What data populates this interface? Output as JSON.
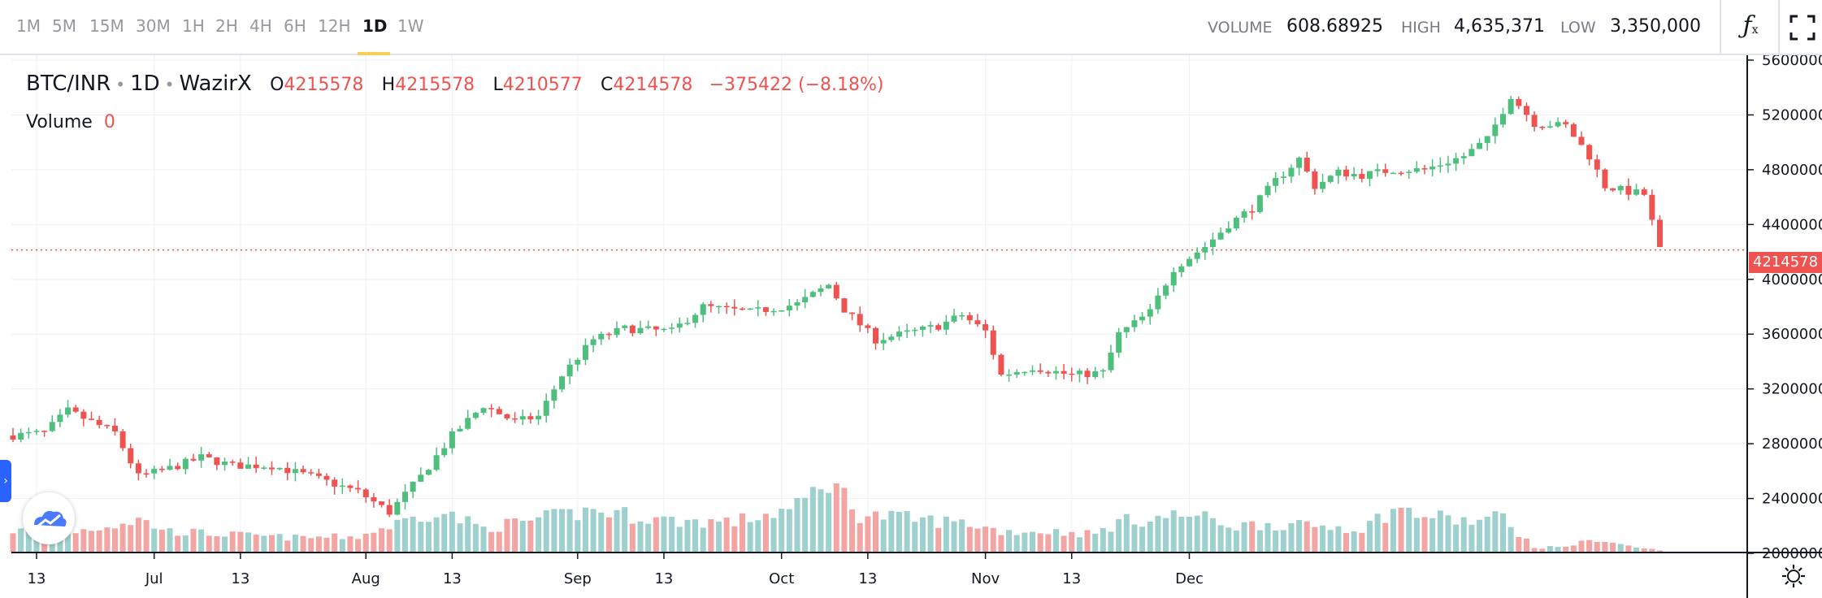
{
  "toolbar": {
    "intervals": [
      "1M",
      "5M",
      "15M",
      "30M",
      "1H",
      "2H",
      "4H",
      "6H",
      "12H",
      "1D",
      "1W"
    ],
    "active_interval": "1D",
    "volume_label": "VOLUME",
    "volume_value": "608.68925",
    "high_label": "HIGH",
    "high_value": "4,635,371",
    "low_label": "LOW",
    "low_value": "3,350,000",
    "fx_icon": "fx-indicators-icon",
    "fullscreen_icon": "fullscreen-icon"
  },
  "legend": {
    "symbol": "BTC/INR",
    "interval": "1D",
    "exchange": "WazirX",
    "open_label": "O",
    "open_value": "4215578",
    "high_label": "H",
    "high_value": "4215578",
    "low_label": "L",
    "low_value": "4210577",
    "close_label": "C",
    "close_value": "4214578",
    "change": "−375422 (−8.18%)",
    "volume_label": "Volume",
    "volume_value": "0"
  },
  "colors": {
    "up": "#26a69a",
    "up_candle": "#4fbf7e",
    "down": "#ef5350",
    "up_volume": "#9ed1cd",
    "down_volume": "#f3a5a4",
    "grid": "#eef0f3",
    "accent": "#2962ff",
    "active_tab": "#f5cf5a"
  },
  "price_label": "4214578",
  "chart_data": {
    "type": "candlestick",
    "y_axis_ticks": [
      "5600000",
      "5200000",
      "4800000",
      "4400000",
      "4000000",
      "3600000",
      "3200000",
      "2800000",
      "2400000",
      "2000000"
    ],
    "y_tick_values": [
      5600000,
      5200000,
      4800000,
      4400000,
      4000000,
      3600000,
      3200000,
      2800000,
      2400000,
      2000000
    ],
    "x_axis_ticks": [
      "13",
      "Jul",
      "13",
      "Aug",
      "13",
      "Sep",
      "13",
      "Oct",
      "13",
      "Nov",
      "13",
      "Dec"
    ],
    "current_price": 4214578,
    "keypoints": [
      [
        0,
        2860000
      ],
      [
        4,
        2880000
      ],
      [
        7,
        3040000
      ],
      [
        13,
        2880000
      ],
      [
        16,
        2560000
      ],
      [
        20,
        2620000
      ],
      [
        24,
        2700000
      ],
      [
        28,
        2640000
      ],
      [
        33,
        2640000
      ],
      [
        38,
        2560000
      ],
      [
        44,
        2450000
      ],
      [
        48,
        2300000
      ],
      [
        52,
        2560000
      ],
      [
        56,
        2860000
      ],
      [
        60,
        3080000
      ],
      [
        64,
        2960000
      ],
      [
        67,
        3000000
      ],
      [
        70,
        3300000
      ],
      [
        74,
        3560000
      ],
      [
        78,
        3640000
      ],
      [
        84,
        3620000
      ],
      [
        88,
        3800000
      ],
      [
        94,
        3760000
      ],
      [
        100,
        3820000
      ],
      [
        104,
        3960000
      ],
      [
        106,
        3780000
      ],
      [
        110,
        3560000
      ],
      [
        115,
        3620000
      ],
      [
        118,
        3660000
      ],
      [
        121,
        3740000
      ],
      [
        124,
        3620000
      ],
      [
        126,
        3300000
      ],
      [
        130,
        3360000
      ],
      [
        135,
        3300000
      ],
      [
        139,
        3320000
      ],
      [
        141,
        3600000
      ],
      [
        145,
        3760000
      ],
      [
        148,
        4080000
      ],
      [
        152,
        4240000
      ],
      [
        155,
        4400000
      ],
      [
        158,
        4520000
      ],
      [
        161,
        4720000
      ],
      [
        164,
        4880000
      ],
      [
        166,
        4680000
      ],
      [
        169,
        4780000
      ],
      [
        172,
        4760000
      ],
      [
        176,
        4800000
      ],
      [
        180,
        4800000
      ],
      [
        185,
        4900000
      ],
      [
        188,
        5020000
      ],
      [
        191,
        5340000
      ],
      [
        194,
        5140000
      ],
      [
        198,
        5120000
      ],
      [
        201,
        4900000
      ],
      [
        203,
        4680000
      ],
      [
        206,
        4640000
      ],
      [
        208,
        4620000
      ],
      [
        210,
        4214578
      ]
    ],
    "volume_keypoints": [
      [
        0,
        0.42
      ],
      [
        6,
        0.35
      ],
      [
        16,
        0.62
      ],
      [
        20,
        0.4
      ],
      [
        30,
        0.32
      ],
      [
        36,
        0.28
      ],
      [
        44,
        0.3
      ],
      [
        54,
        0.8
      ],
      [
        60,
        0.46
      ],
      [
        70,
        0.7
      ],
      [
        74,
        0.8
      ],
      [
        78,
        0.72
      ],
      [
        84,
        0.6
      ],
      [
        92,
        0.58
      ],
      [
        100,
        0.85
      ],
      [
        104,
        1.4
      ],
      [
        108,
        0.72
      ],
      [
        116,
        0.62
      ],
      [
        122,
        0.55
      ],
      [
        126,
        0.4
      ],
      [
        132,
        0.4
      ],
      [
        138,
        0.35
      ],
      [
        141,
        0.58
      ],
      [
        150,
        0.72
      ],
      [
        156,
        0.5
      ],
      [
        160,
        0.55
      ],
      [
        164,
        0.5
      ],
      [
        168,
        0.5
      ],
      [
        172,
        0.45
      ],
      [
        176,
        0.82
      ],
      [
        180,
        0.7
      ],
      [
        186,
        0.58
      ],
      [
        190,
        0.68
      ],
      [
        194,
        0.08
      ],
      [
        198,
        0.12
      ],
      [
        202,
        0.25
      ],
      [
        206,
        0.12
      ],
      [
        210,
        0.04
      ]
    ]
  }
}
